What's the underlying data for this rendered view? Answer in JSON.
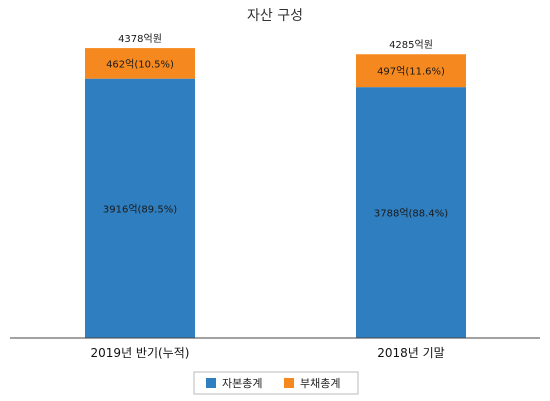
{
  "chart_data": {
    "type": "bar",
    "stacked": true,
    "title": "자산 구성",
    "categories": [
      "2019년 반기(누적)",
      "2018년 기말"
    ],
    "totals": [
      4378,
      4285
    ],
    "total_labels": [
      "4378억원",
      "4285억원"
    ],
    "series": [
      {
        "name": "자본총계",
        "color": "#2f7ebf",
        "values": [
          3916,
          3788
        ],
        "labels": [
          "3916억(89.5%)",
          "3788억(88.4%)"
        ]
      },
      {
        "name": "부채총계",
        "color": "#f5891f",
        "values": [
          462,
          497
        ],
        "labels": [
          "462억(10.5%)",
          "497억(11.6%)"
        ]
      }
    ],
    "ylim": [
      0,
      4500
    ],
    "grid": false,
    "legend_position": "bottom"
  }
}
